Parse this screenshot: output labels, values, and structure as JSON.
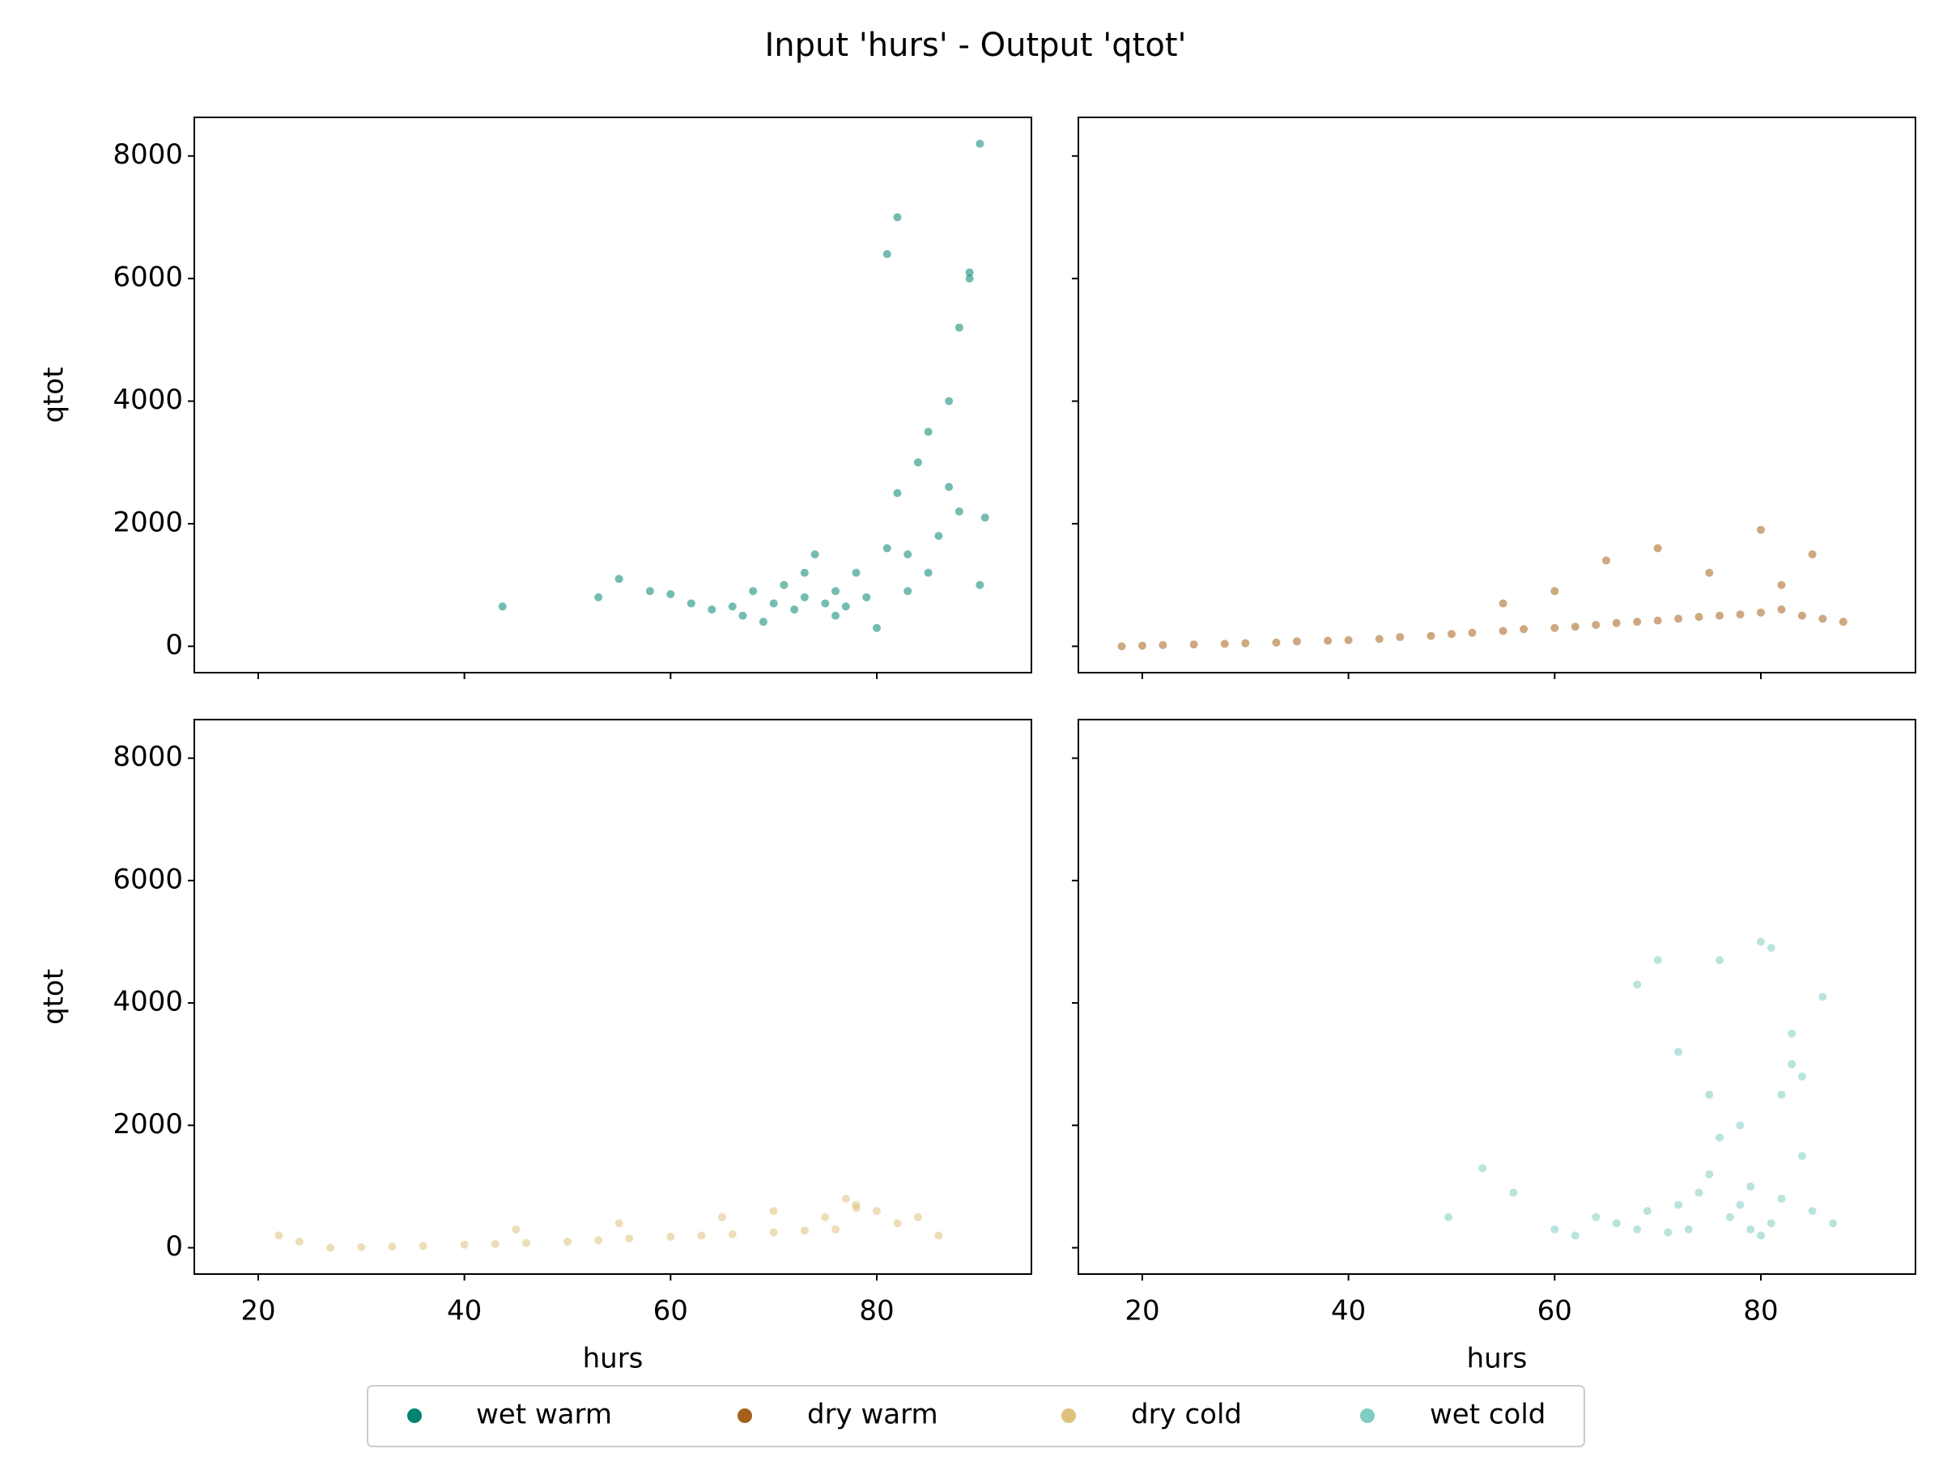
{
  "title": "Input 'hurs' - Output 'qtot'",
  "chart_data": [
    {
      "type": "scatter",
      "ylabel": "qtot",
      "xlim": [
        13.8,
        95
      ],
      "ylim": [
        -430,
        8630
      ],
      "xticks": [
        20,
        40,
        60,
        80
      ],
      "yticks": [
        0,
        2000,
        4000,
        6000,
        8000
      ],
      "series": [
        {
          "name": "wet warm",
          "color": "#018571",
          "x": [
            43.7,
            53,
            55,
            58,
            60,
            62,
            64,
            66,
            67,
            68,
            69,
            70,
            71,
            72,
            73,
            74,
            75,
            76,
            77,
            78,
            79,
            80,
            81,
            82,
            83,
            84,
            85,
            86,
            87,
            88,
            89,
            90,
            90.5,
            82,
            85,
            87,
            89,
            90,
            83,
            88,
            81,
            76,
            73
          ],
          "y": [
            650,
            800,
            1100,
            900,
            850,
            700,
            600,
            650,
            500,
            900,
            400,
            700,
            1000,
            600,
            800,
            1500,
            700,
            900,
            650,
            1200,
            800,
            300,
            1600,
            2500,
            900,
            3000,
            1200,
            1800,
            4000,
            5200,
            6100,
            8200,
            2100,
            7000,
            3500,
            2600,
            6000,
            1000,
            1500,
            2200,
            6400,
            500,
            1200
          ]
        }
      ]
    },
    {
      "type": "scatter",
      "xlim": [
        13.8,
        95
      ],
      "ylim": [
        -430,
        8630
      ],
      "xticks": [
        20,
        40,
        60,
        80
      ],
      "yticks": [
        0,
        2000,
        4000,
        6000,
        8000
      ],
      "series": [
        {
          "name": "dry warm",
          "color": "#a6611a",
          "x": [
            18,
            20,
            22,
            25,
            28,
            30,
            33,
            35,
            38,
            40,
            43,
            45,
            48,
            50,
            52,
            55,
            57,
            60,
            62,
            64,
            66,
            68,
            70,
            72,
            74,
            76,
            78,
            80,
            82,
            84,
            86,
            88,
            65,
            70,
            75,
            80,
            82,
            85,
            60,
            55
          ],
          "y": [
            0,
            10,
            20,
            30,
            40,
            50,
            60,
            80,
            90,
            100,
            120,
            150,
            170,
            200,
            220,
            250,
            280,
            300,
            320,
            350,
            380,
            400,
            420,
            450,
            480,
            500,
            520,
            550,
            600,
            500,
            450,
            400,
            1400,
            1600,
            1200,
            1900,
            1000,
            1500,
            900,
            700
          ]
        }
      ]
    },
    {
      "type": "scatter",
      "ylabel": "qtot",
      "xlabel": "hurs",
      "xlim": [
        13.8,
        95
      ],
      "ylim": [
        -430,
        8630
      ],
      "xticks": [
        20,
        40,
        60,
        80
      ],
      "yticks": [
        0,
        2000,
        4000,
        6000,
        8000
      ],
      "series": [
        {
          "name": "dry cold",
          "color": "#dfc27d",
          "x": [
            22,
            24,
            27,
            30,
            33,
            36,
            40,
            43,
            46,
            50,
            53,
            56,
            60,
            63,
            66,
            70,
            73,
            76,
            78,
            80,
            82,
            84,
            86,
            77,
            78,
            75,
            70,
            65,
            55,
            45
          ],
          "y": [
            200,
            100,
            0,
            10,
            20,
            30,
            50,
            60,
            80,
            100,
            120,
            150,
            180,
            200,
            220,
            250,
            280,
            300,
            700,
            600,
            400,
            500,
            200,
            800,
            650,
            500,
            600,
            500,
            400,
            300
          ]
        }
      ]
    },
    {
      "type": "scatter",
      "xlabel": "hurs",
      "xlim": [
        13.8,
        95
      ],
      "ylim": [
        -430,
        8630
      ],
      "xticks": [
        20,
        40,
        60,
        80
      ],
      "yticks": [
        0,
        2000,
        4000,
        6000,
        8000
      ],
      "series": [
        {
          "name": "wet cold",
          "color": "#80cdc1",
          "x": [
            49.7,
            53,
            56,
            60,
            62,
            64,
            66,
            68,
            69,
            70,
            71,
            72,
            73,
            74,
            75,
            76,
            77,
            78,
            79,
            80,
            81,
            82,
            83,
            84,
            85,
            86,
            87,
            68,
            72,
            76,
            79,
            80,
            82,
            84,
            78,
            81,
            83,
            75
          ],
          "y": [
            500,
            1300,
            900,
            300,
            200,
            500,
            400,
            300,
            600,
            4700,
            250,
            700,
            300,
            900,
            1200,
            4700,
            500,
            2000,
            300,
            5000,
            4900,
            2500,
            3500,
            1500,
            600,
            4100,
            400,
            4300,
            3200,
            1800,
            1000,
            200,
            800,
            2800,
            700,
            400,
            3000,
            2500
          ]
        }
      ]
    }
  ]
}
